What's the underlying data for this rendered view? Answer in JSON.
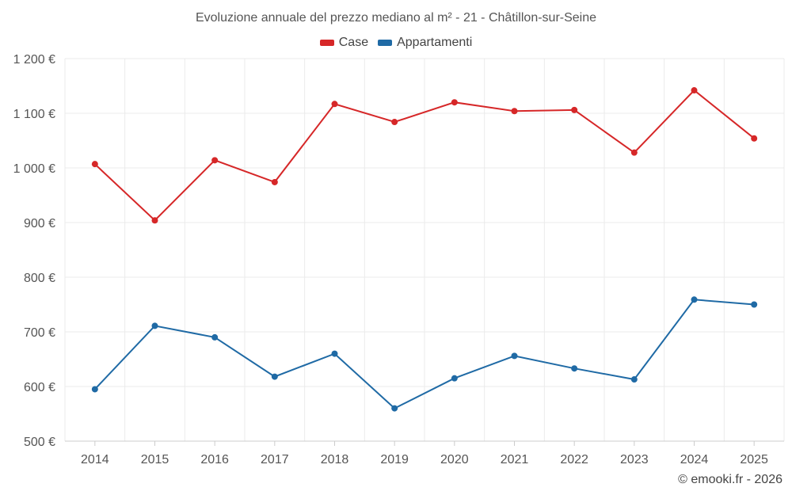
{
  "chart_data": {
    "type": "line",
    "title": "Evoluzione annuale del prezzo mediano al m² - 21 - Châtillon-sur-Seine",
    "categories": [
      "2014",
      "2015",
      "2016",
      "2017",
      "2018",
      "2019",
      "2020",
      "2021",
      "2022",
      "2023",
      "2024",
      "2025"
    ],
    "series": [
      {
        "name": "Case",
        "color": "#d62728",
        "values": [
          1007,
          904,
          1014,
          974,
          1117,
          1084,
          1120,
          1104,
          1106,
          1028,
          1142,
          1054
        ]
      },
      {
        "name": "Appartamenti",
        "color": "#1f6aa5",
        "values": [
          595,
          711,
          690,
          618,
          660,
          560,
          615,
          656,
          633,
          613,
          759,
          750
        ]
      }
    ],
    "ylim": [
      500,
      1200
    ],
    "yticks": [
      500,
      600,
      700,
      800,
      900,
      1000,
      1100,
      1200
    ],
    "ytick_labels": [
      "500 €",
      "600 €",
      "700 €",
      "800 €",
      "900 €",
      "1 000 €",
      "1 100 €",
      "1 200 €"
    ],
    "xlabel": "",
    "ylabel": "",
    "legend_position": "top-center",
    "grid": true
  },
  "credit": "© emooki.fr - 2026"
}
